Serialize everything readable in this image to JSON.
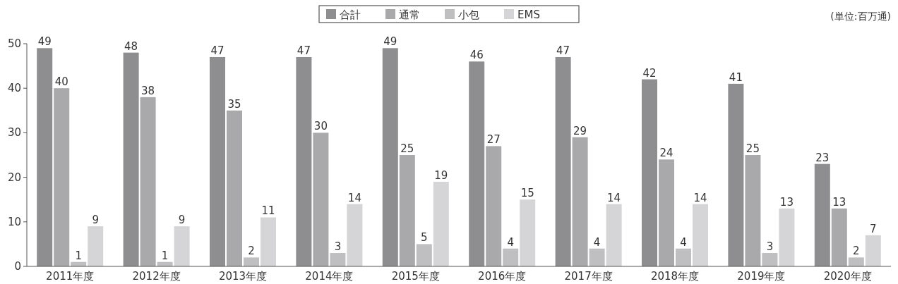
{
  "chart_data": {
    "type": "bar",
    "categories": [
      "2011年度",
      "2012年度",
      "2013年度",
      "2014年度",
      "2015年度",
      "2016年度",
      "2017年度",
      "2018年度",
      "2019年度",
      "2020年度"
    ],
    "series": [
      {
        "name": "合計",
        "color": "#8e8e90",
        "values": [
          49,
          48,
          47,
          47,
          49,
          46,
          47,
          42,
          41,
          23
        ]
      },
      {
        "name": "通常",
        "color": "#a9a9ab",
        "values": [
          40,
          38,
          35,
          30,
          25,
          27,
          29,
          24,
          25,
          13
        ]
      },
      {
        "name": "小包",
        "color": "#bfbfc1",
        "values": [
          1,
          1,
          2,
          3,
          5,
          4,
          4,
          4,
          3,
          2
        ]
      },
      {
        "name": "EMS",
        "color": "#d5d5d7",
        "values": [
          9,
          9,
          11,
          14,
          19,
          15,
          14,
          14,
          13,
          7
        ]
      }
    ],
    "ylim": [
      0,
      50
    ],
    "yticks": [
      0,
      10,
      20,
      30,
      40,
      50
    ],
    "data_labels": true,
    "legend": "top",
    "grid": false,
    "annotations": [
      "(単位:百万通)"
    ]
  }
}
